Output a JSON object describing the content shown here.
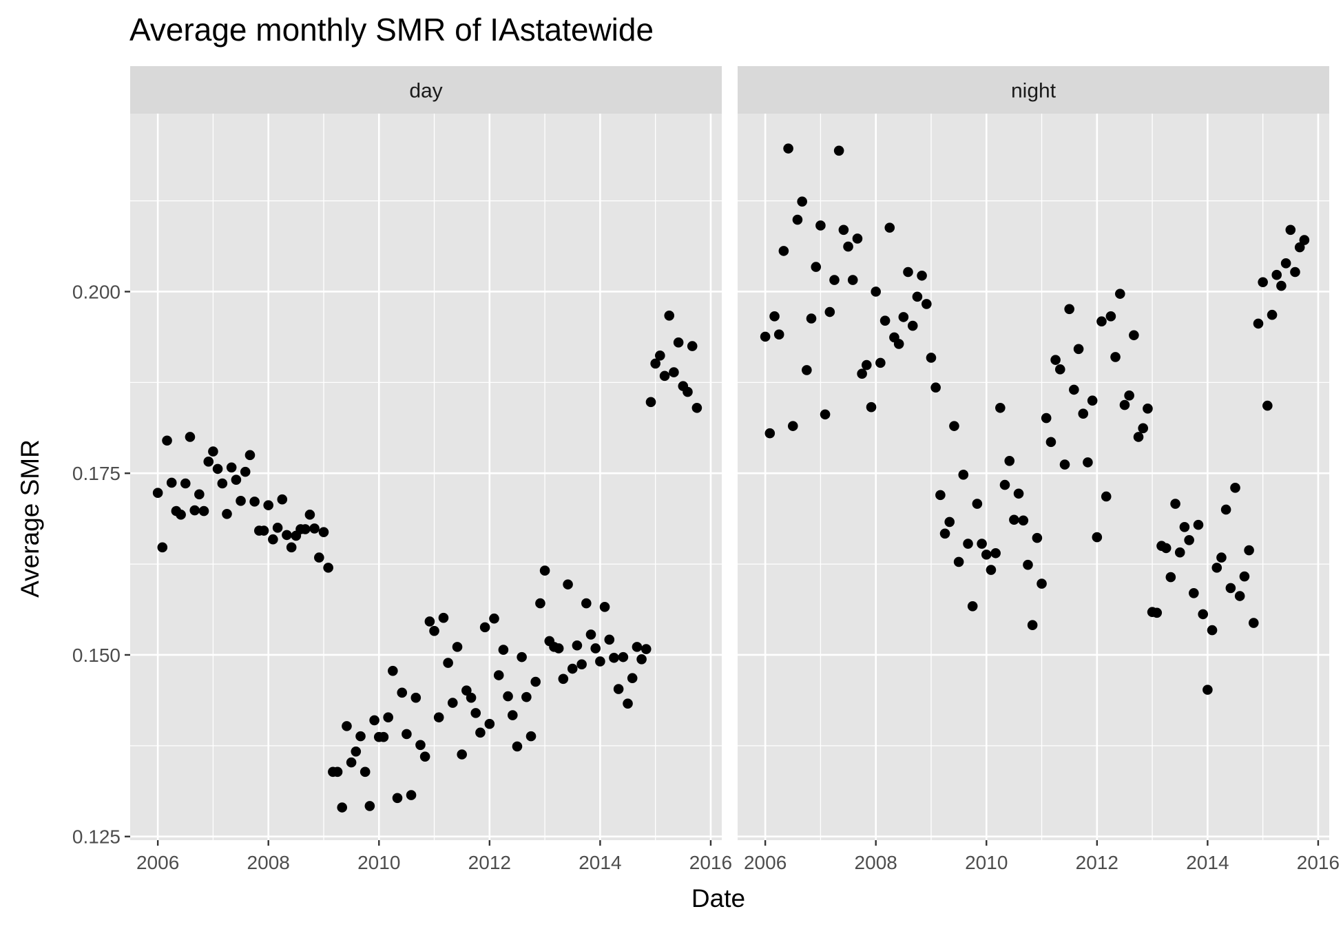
{
  "chart_data": {
    "type": "scatter",
    "title": "Average monthly SMR of IAstatewide",
    "xlabel": "Date",
    "ylabel": "Average SMR",
    "xlim": [
      2005.5,
      2016.2
    ],
    "ylim": [
      0.1245,
      0.2245
    ],
    "x_ticks": [
      2006,
      2008,
      2010,
      2012,
      2014,
      2016
    ],
    "x_tick_labels": [
      "2006",
      "2008",
      "2010",
      "2012",
      "2014",
      "2016"
    ],
    "y_ticks": [
      0.125,
      0.15,
      0.175,
      0.2
    ],
    "y_tick_labels": [
      "0.125",
      "0.150",
      "0.175",
      "0.200"
    ],
    "y_minor_ticks": [
      0.1375,
      0.1625,
      0.1875,
      0.2125
    ],
    "grid": true,
    "panel_background": "#e5e5e5",
    "strip_background": "#d9d9d9",
    "grid_color": "#ffffff",
    "point_color": "#000000",
    "panels": [
      {
        "label": "day",
        "x": [
          2006.0,
          2006.083,
          2006.167,
          2006.25,
          2006.333,
          2006.417,
          2006.5,
          2006.583,
          2006.667,
          2006.75,
          2006.833,
          2006.917,
          2007.0,
          2007.083,
          2007.167,
          2007.25,
          2007.333,
          2007.417,
          2007.5,
          2007.583,
          2007.667,
          2007.75,
          2007.833,
          2007.917,
          2008.0,
          2008.083,
          2008.167,
          2008.25,
          2008.333,
          2008.417,
          2008.5,
          2008.583,
          2008.667,
          2008.75,
          2008.833,
          2008.917,
          2009.0,
          2009.083,
          2009.167,
          2009.25,
          2009.333,
          2009.417,
          2009.5,
          2009.583,
          2009.667,
          2009.75,
          2009.833,
          2009.917,
          2010.0,
          2010.083,
          2010.167,
          2010.25,
          2010.333,
          2010.417,
          2010.5,
          2010.583,
          2010.667,
          2010.75,
          2010.833,
          2010.917,
          2011.0,
          2011.083,
          2011.167,
          2011.25,
          2011.333,
          2011.417,
          2011.5,
          2011.583,
          2011.667,
          2011.75,
          2011.833,
          2011.917,
          2012.0,
          2012.083,
          2012.167,
          2012.25,
          2012.333,
          2012.417,
          2012.5,
          2012.583,
          2012.667,
          2012.75,
          2012.833,
          2012.917,
          2013.0,
          2013.083,
          2013.167,
          2013.25,
          2013.333,
          2013.417,
          2013.5,
          2013.583,
          2013.667,
          2013.75,
          2013.833,
          2013.917,
          2014.0,
          2014.083,
          2014.167,
          2014.25,
          2014.333,
          2014.417,
          2014.5,
          2014.583,
          2014.667,
          2014.75,
          2014.833,
          2014.917,
          2015.0,
          2015.083,
          2015.167,
          2015.25,
          2015.333,
          2015.417,
          2015.5,
          2015.583,
          2015.667,
          2015.75
        ],
        "y": [
          0.1723,
          0.1648,
          0.1795,
          0.1737,
          0.1698,
          0.1693,
          0.1736,
          0.18,
          0.1699,
          0.1721,
          0.1698,
          0.1766,
          0.178,
          0.1756,
          0.1736,
          0.1694,
          0.1758,
          0.1741,
          0.1712,
          0.1752,
          0.1775,
          0.1711,
          0.1671,
          0.1671,
          0.1706,
          0.1659,
          0.1675,
          0.1714,
          0.1665,
          0.1648,
          0.1664,
          0.1673,
          0.1673,
          0.1693,
          0.1674,
          0.1634,
          0.1669,
          0.162,
          0.1339,
          0.1339,
          0.129,
          0.1402,
          0.1352,
          0.1367,
          0.1388,
          0.1339,
          0.1292,
          0.141,
          0.1387,
          0.1387,
          0.1414,
          0.1478,
          0.1303,
          0.1448,
          0.1391,
          0.1307,
          0.1441,
          0.1376,
          0.136,
          0.1546,
          0.1533,
          0.1414,
          0.1551,
          0.1489,
          0.1434,
          0.1511,
          0.1363,
          0.1451,
          0.1441,
          0.142,
          0.1393,
          0.1538,
          0.1405,
          0.155,
          0.1472,
          0.1507,
          0.1443,
          0.1417,
          0.1374,
          0.1497,
          0.1442,
          0.1388,
          0.1463,
          0.1571,
          0.1616,
          0.1519,
          0.1511,
          0.1509,
          0.1467,
          0.1597,
          0.1481,
          0.1513,
          0.1487,
          0.1571,
          0.1528,
          0.1509,
          0.1491,
          0.1566,
          0.1521,
          0.1496,
          0.1453,
          0.1497,
          0.1433,
          0.1468,
          0.1511,
          0.1494,
          0.1508,
          0.1848,
          0.1901,
          0.1912,
          0.1884,
          0.1967,
          0.1889,
          0.193,
          0.187,
          0.1862,
          0.1925,
          0.184
        ]
      },
      {
        "label": "night",
        "x": [
          2006.0,
          2006.083,
          2006.167,
          2006.25,
          2006.333,
          2006.417,
          2006.5,
          2006.583,
          2006.667,
          2006.75,
          2006.833,
          2006.917,
          2007.0,
          2007.083,
          2007.167,
          2007.25,
          2007.333,
          2007.417,
          2007.5,
          2007.583,
          2007.667,
          2007.75,
          2007.833,
          2007.917,
          2008.0,
          2008.083,
          2008.167,
          2008.25,
          2008.333,
          2008.417,
          2008.5,
          2008.583,
          2008.667,
          2008.75,
          2008.833,
          2008.917,
          2009.0,
          2009.083,
          2009.167,
          2009.25,
          2009.333,
          2009.417,
          2009.5,
          2009.583,
          2009.667,
          2009.75,
          2009.833,
          2009.917,
          2010.0,
          2010.083,
          2010.167,
          2010.25,
          2010.333,
          2010.417,
          2010.5,
          2010.583,
          2010.667,
          2010.75,
          2010.833,
          2010.917,
          2011.0,
          2011.083,
          2011.167,
          2011.25,
          2011.333,
          2011.417,
          2011.5,
          2011.583,
          2011.667,
          2011.75,
          2011.833,
          2011.917,
          2012.0,
          2012.083,
          2012.167,
          2012.25,
          2012.333,
          2012.417,
          2012.5,
          2012.583,
          2012.667,
          2012.75,
          2012.833,
          2012.917,
          2013.0,
          2013.083,
          2013.167,
          2013.25,
          2013.333,
          2013.417,
          2013.5,
          2013.583,
          2013.667,
          2013.75,
          2013.833,
          2013.917,
          2014.0,
          2014.083,
          2014.167,
          2014.25,
          2014.333,
          2014.417,
          2014.5,
          2014.583,
          2014.667,
          2014.75,
          2014.833,
          2014.917,
          2015.0,
          2015.083,
          2015.167,
          2015.25,
          2015.333,
          2015.417,
          2015.5,
          2015.583,
          2015.667,
          2015.75
        ],
        "y": [
          0.1938,
          0.1805,
          0.1966,
          0.1941,
          0.2056,
          0.2197,
          0.1815,
          0.2099,
          0.2124,
          0.1892,
          0.1963,
          0.2034,
          0.2091,
          0.1831,
          0.1972,
          0.2016,
          0.2194,
          0.2085,
          0.2062,
          0.2016,
          0.2073,
          0.1887,
          0.1899,
          0.1841,
          0.2,
          0.1902,
          0.196,
          0.2088,
          0.1937,
          0.1928,
          0.1965,
          0.2027,
          0.1953,
          0.1993,
          0.2022,
          0.1983,
          0.1909,
          0.1868,
          0.172,
          0.1667,
          0.1683,
          0.1815,
          0.1628,
          0.1748,
          0.1653,
          0.1567,
          0.1708,
          0.1653,
          0.1638,
          0.1617,
          0.164,
          0.184,
          0.1734,
          0.1767,
          0.1686,
          0.1722,
          0.1685,
          0.1624,
          0.1541,
          0.1661,
          0.1598,
          0.1826,
          0.1793,
          0.1906,
          0.1893,
          0.1762,
          0.1976,
          0.1865,
          0.1921,
          0.1832,
          0.1765,
          0.185,
          0.1662,
          0.1959,
          0.1718,
          0.1966,
          0.191,
          0.1997,
          0.1844,
          0.1857,
          0.194,
          0.18,
          0.1812,
          0.1839,
          0.1559,
          0.1558,
          0.165,
          0.1647,
          0.1607,
          0.1708,
          0.1641,
          0.1676,
          0.1658,
          0.1585,
          0.1679,
          0.1556,
          0.1452,
          0.1534,
          0.162,
          0.1634,
          0.17,
          0.1592,
          0.173,
          0.1581,
          0.1608,
          0.1644,
          0.1544,
          0.1956,
          0.2013,
          0.1843,
          0.1968,
          0.2023,
          0.2008,
          0.2039,
          0.2085,
          0.2027,
          0.2061,
          0.2071
        ]
      }
    ]
  }
}
